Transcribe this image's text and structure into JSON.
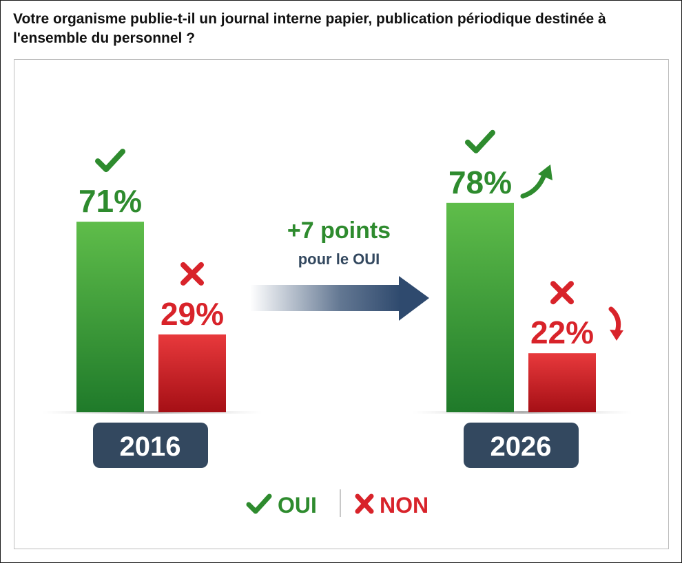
{
  "question": "Votre organisme publie-t-il un journal interne papier, publication périodique destinée à l'ensemble du personnel ?",
  "colors": {
    "oui": "#2e8b2e",
    "oui_light": "#5fbd4a",
    "non": "#d8232a",
    "non_dark": "#9e0f14",
    "year_badge": "#33485f",
    "arrow": "#2f4a6e"
  },
  "chart_data": {
    "type": "bar",
    "categories": [
      "2016",
      "2026"
    ],
    "series": [
      {
        "name": "OUI",
        "values": [
          71,
          78
        ]
      },
      {
        "name": "NON",
        "values": [
          29,
          22
        ]
      }
    ],
    "value_labels": {
      "OUI": [
        "71%",
        "78%"
      ],
      "NON": [
        "29%",
        "22%"
      ]
    },
    "ylim": [
      0,
      100
    ],
    "annotation": {
      "main": "+7 points",
      "sub": "pour le OUI"
    },
    "legend": {
      "position": "bottom-center",
      "items": [
        {
          "label": "OUI",
          "icon": "check-icon"
        },
        {
          "label": "NON",
          "icon": "cross-icon"
        }
      ]
    },
    "grid": false
  }
}
